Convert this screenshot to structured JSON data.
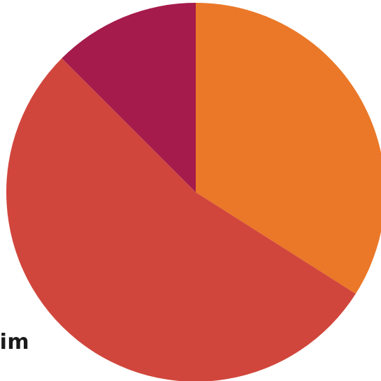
{
  "chart_data": {
    "type": "pie",
    "slices": [
      {
        "value": 34,
        "color": "#ea7828"
      },
      {
        "value": 53.5,
        "color": "#d1463c"
      },
      {
        "value": 12.5,
        "color": "#a51b4b"
      }
    ],
    "labels": [
      {
        "text": "ilim"
      }
    ],
    "start_angle_deg": 0,
    "direction": "clockwise"
  }
}
